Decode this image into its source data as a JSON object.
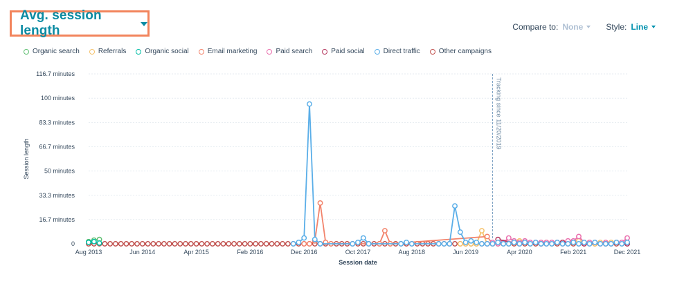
{
  "header": {
    "title": "Avg. session length",
    "compare_label": "Compare to:",
    "compare_value": "None",
    "style_label": "Style:",
    "style_value": "Line"
  },
  "chart_data": {
    "type": "line",
    "xlabel": "Session date",
    "ylabel": "Session length",
    "ylim": [
      0,
      116.7
    ],
    "y_ticks": [
      "0",
      "16.7 minutes",
      "33.3 minutes",
      "50 minutes",
      "66.7 minutes",
      "83.3 minutes",
      "100 minutes",
      "116.7 minutes"
    ],
    "y_tick_values": [
      0,
      16.7,
      33.3,
      50,
      66.7,
      83.3,
      100,
      116.7
    ],
    "x_tick_labels": [
      "Aug 2013",
      "Jun 2014",
      "Apr 2015",
      "Feb 2016",
      "Dec 2016",
      "Oct 2017",
      "Aug 2018",
      "Jun 2019",
      "Apr 2020",
      "Feb 2021",
      "Dec 2021"
    ],
    "x_tick_index": [
      0,
      10,
      20,
      30,
      40,
      50,
      60,
      70,
      80,
      90,
      100
    ],
    "grid": "horizontal",
    "legend_position": "top-left",
    "annotation": {
      "text": "Tracking since 11/20/2019",
      "index": 75
    },
    "series": [
      {
        "name": "Organic search",
        "color": "#5fbf72",
        "points": [
          [
            0,
            1.5
          ],
          [
            1,
            2.5
          ],
          [
            2,
            3
          ]
        ]
      },
      {
        "name": "Referrals",
        "color": "#f5c26b",
        "points": [
          [
            69,
            0
          ],
          [
            70,
            0
          ],
          [
            71,
            0
          ],
          [
            72,
            0
          ],
          [
            73,
            9
          ],
          [
            74,
            0
          ],
          [
            75,
            0
          ],
          [
            76,
            0
          ],
          [
            77,
            1
          ],
          [
            78,
            0
          ],
          [
            79,
            1
          ],
          [
            80,
            2
          ],
          [
            81,
            1
          ],
          [
            82,
            0
          ],
          [
            83,
            1
          ],
          [
            84,
            0
          ],
          [
            85,
            1
          ],
          [
            86,
            0
          ],
          [
            87,
            1
          ],
          [
            88,
            1
          ],
          [
            89,
            0
          ],
          [
            90,
            1
          ],
          [
            91,
            2
          ],
          [
            92,
            1
          ],
          [
            93,
            1
          ],
          [
            94,
            0
          ],
          [
            95,
            1
          ],
          [
            96,
            0
          ],
          [
            97,
            1
          ],
          [
            98,
            1
          ],
          [
            99,
            0
          ],
          [
            100,
            1
          ]
        ]
      },
      {
        "name": "Organic social",
        "color": "#00bda5",
        "points": [
          [
            0,
            1
          ],
          [
            1,
            1.5
          ],
          [
            2,
            0.5
          ]
        ]
      },
      {
        "name": "Email marketing",
        "color": "#f2836b",
        "points": [
          [
            40,
            0
          ],
          [
            41,
            0
          ],
          [
            42,
            2
          ],
          [
            43,
            28
          ],
          [
            44,
            1
          ],
          [
            45,
            0
          ],
          [
            54,
            0
          ],
          [
            55,
            9
          ],
          [
            56,
            0
          ],
          [
            74,
            5
          ],
          [
            75,
            0
          ]
        ]
      },
      {
        "name": "Paid search",
        "color": "#ea6fad",
        "points": [
          [
            74,
            0
          ],
          [
            75,
            1
          ],
          [
            76,
            0
          ],
          [
            77,
            1
          ],
          [
            78,
            4
          ],
          [
            79,
            2
          ],
          [
            80,
            1
          ],
          [
            81,
            2
          ],
          [
            82,
            1
          ],
          [
            83,
            1
          ],
          [
            84,
            1
          ],
          [
            85,
            1
          ],
          [
            86,
            1
          ],
          [
            87,
            1
          ],
          [
            88,
            1
          ],
          [
            89,
            2
          ],
          [
            90,
            2
          ],
          [
            91,
            5
          ],
          [
            92,
            1
          ],
          [
            93,
            1
          ],
          [
            94,
            1
          ],
          [
            95,
            0
          ],
          [
            96,
            1
          ],
          [
            97,
            0
          ],
          [
            98,
            1
          ],
          [
            99,
            1
          ],
          [
            100,
            4
          ]
        ]
      },
      {
        "name": "Paid social",
        "color": "#b5385f",
        "points": [
          [
            76,
            3
          ],
          [
            80,
            0
          ],
          [
            84,
            0
          ],
          [
            88,
            1
          ],
          [
            92,
            0
          ],
          [
            96,
            0
          ],
          [
            100,
            0
          ]
        ]
      },
      {
        "name": "Direct traffic",
        "color": "#5aaee8",
        "points": [
          [
            38,
            0
          ],
          [
            39,
            1
          ],
          [
            40,
            4
          ],
          [
            41,
            96
          ],
          [
            42,
            3
          ],
          [
            43,
            0
          ],
          [
            49,
            0
          ],
          [
            50,
            1
          ],
          [
            51,
            4
          ],
          [
            52,
            0
          ],
          [
            58,
            0
          ],
          [
            59,
            1
          ],
          [
            60,
            0
          ],
          [
            65,
            0
          ],
          [
            66,
            0
          ],
          [
            67,
            0
          ],
          [
            68,
            26
          ],
          [
            69,
            8
          ],
          [
            70,
            1
          ],
          [
            71,
            2
          ],
          [
            72,
            1
          ],
          [
            73,
            0
          ],
          [
            74,
            0
          ],
          [
            75,
            0
          ],
          [
            76,
            1
          ],
          [
            77,
            0
          ],
          [
            78,
            0
          ],
          [
            79,
            1
          ],
          [
            80,
            0
          ],
          [
            81,
            1
          ],
          [
            82,
            0
          ],
          [
            83,
            1
          ],
          [
            84,
            0
          ],
          [
            85,
            0
          ],
          [
            86,
            0
          ],
          [
            87,
            1
          ],
          [
            88,
            0
          ],
          [
            89,
            0
          ],
          [
            90,
            1
          ],
          [
            91,
            0
          ],
          [
            92,
            1
          ],
          [
            93,
            0
          ],
          [
            94,
            1
          ],
          [
            95,
            0
          ],
          [
            96,
            0
          ],
          [
            97,
            0
          ],
          [
            98,
            1
          ],
          [
            99,
            0
          ],
          [
            100,
            1
          ]
        ]
      },
      {
        "name": "Other campaigns",
        "color": "#c0504d",
        "baseline_from": 0,
        "baseline_to": 100,
        "baseline_step": 1,
        "points": []
      }
    ]
  }
}
